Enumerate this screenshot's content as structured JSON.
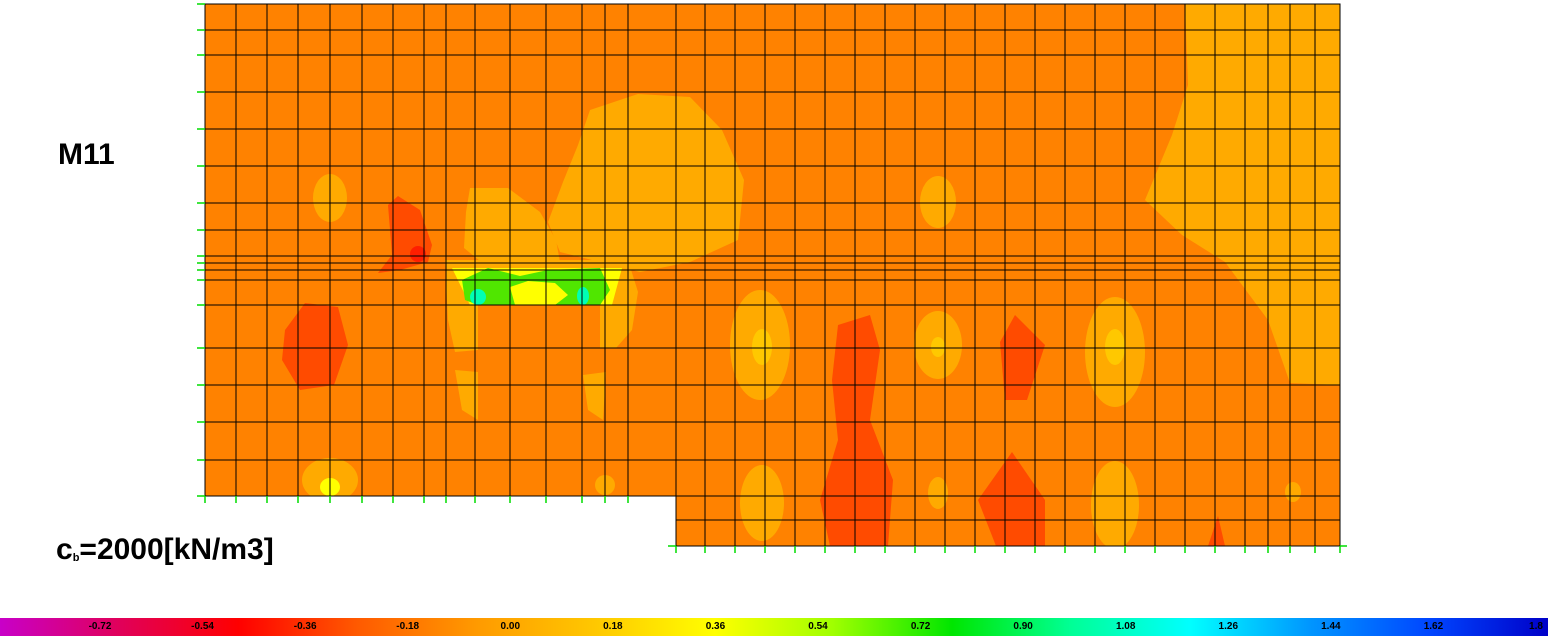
{
  "result": {
    "label": "M11",
    "formula_main": "c",
    "formula_sub": "b",
    "formula_rest": "=2000[kN/m3]"
  },
  "legend": {
    "ticks": [
      "-0.72",
      "-0.54",
      "-0.36",
      "-0.18",
      "0.00",
      "0.18",
      "0.36",
      "0.54",
      "0.72",
      "0.90",
      "1.08",
      "1.26",
      "1.44",
      "1.62",
      "1.8"
    ],
    "colors": [
      "#c800c8",
      "#e0005a",
      "#ff0000",
      "#ff5a00",
      "#ff9a00",
      "#ffc800",
      "#ffff00",
      "#a0ff00",
      "#00e600",
      "#00ff96",
      "#00ffff",
      "#0096ff",
      "#0046ff",
      "#0000c8"
    ]
  },
  "palette": {
    "base": "#ff8200",
    "light": "#ffaa00",
    "yellow_orange": "#ffc800",
    "red_orange": "#ff4b00",
    "red": "#ff1e00",
    "yellow": "#ffff00",
    "green": "#50e600",
    "cyan": "#00ffb4",
    "support": "#00dc00"
  }
}
